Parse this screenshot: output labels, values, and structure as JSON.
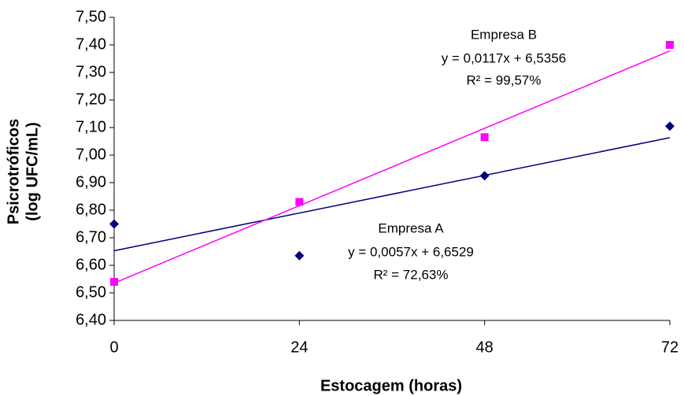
{
  "chart_data": {
    "type": "scatter",
    "xlabel": "Estocagem (horas)",
    "ylabel": [
      "Psicrotróficos",
      "(log UFC/mL)"
    ],
    "x": [
      0,
      24,
      48,
      72
    ],
    "xlim": [
      0,
      72
    ],
    "xticks": [
      0,
      24,
      48,
      72
    ],
    "ylim": [
      6.4,
      7.5
    ],
    "yticks": [
      {
        "value": 6.4,
        "label": "6,40"
      },
      {
        "value": 6.5,
        "label": "6,50"
      },
      {
        "value": 6.6,
        "label": "6,60"
      },
      {
        "value": 6.7,
        "label": "6,70"
      },
      {
        "value": 6.8,
        "label": "6,80"
      },
      {
        "value": 6.9,
        "label": "6,90"
      },
      {
        "value": 7.0,
        "label": "7,00"
      },
      {
        "value": 7.1,
        "label": "7,10"
      },
      {
        "value": 7.2,
        "label": "7,20"
      },
      {
        "value": 7.3,
        "label": "7,30"
      },
      {
        "value": 7.4,
        "label": "7,40"
      },
      {
        "value": 7.5,
        "label": "7,50"
      }
    ],
    "grid": false,
    "series": [
      {
        "name": "Empresa A",
        "color": "#000080",
        "marker": "diamond",
        "values": [
          6.75,
          6.635,
          6.925,
          7.105
        ],
        "trendline": {
          "slope": 0.0057,
          "intercept": 6.6529,
          "equation": "y = 0,0057x + 6,6529",
          "r2": "R² = 72,63%"
        }
      },
      {
        "name": "Empresa B",
        "color": "#ff00ff",
        "marker": "square",
        "values": [
          6.54,
          6.83,
          7.065,
          7.4
        ],
        "trendline": {
          "slope": 0.0117,
          "intercept": 6.5356,
          "equation": "y = 0,0117x + 6,5356",
          "r2": "R² = 99,57%"
        }
      }
    ]
  }
}
